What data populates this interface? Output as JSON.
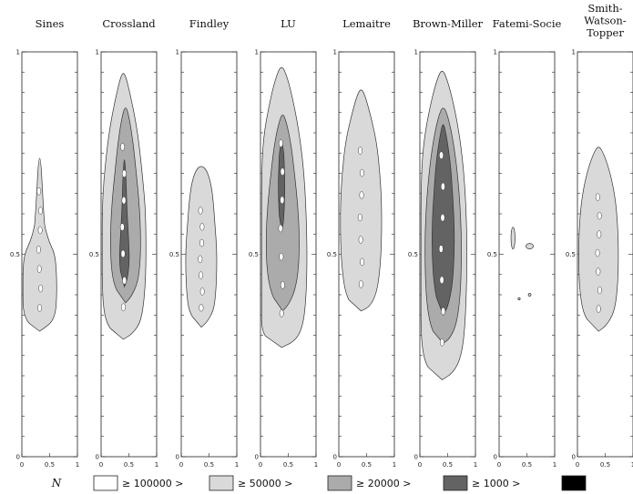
{
  "chart_data": {
    "type": "contour",
    "panels": [
      {
        "title": "Sines",
        "title_lines": [
          "Sines"
        ],
        "regions": [
          {
            "level": 1,
            "cx": 0.32,
            "halfwidths": [
              [
                0.03,
                0.15
              ],
              [
                0.05,
                0.22
              ],
              [
                0.09,
                0.28
              ],
              [
                0.14,
                0.3
              ],
              [
                0.22,
                0.31
              ],
              [
                0.32,
                0.3
              ],
              [
                0.4,
                0.27
              ],
              [
                0.46,
                0.17
              ],
              [
                0.52,
                0.11
              ],
              [
                0.56,
                0.08
              ]
            ],
            "yb": 0.31,
            "yt": 0.79
          }
        ]
      },
      {
        "title": "Crossland",
        "title_lines": [
          "Crossland"
        ],
        "regions": [
          {
            "level": 1,
            "cx": 0.4,
            "halfwidths": [
              [
                0.02,
                0.16
              ],
              [
                0.06,
                0.3
              ],
              [
                0.12,
                0.36
              ],
              [
                0.22,
                0.4
              ],
              [
                0.34,
                0.41
              ],
              [
                0.48,
                0.4
              ],
              [
                0.6,
                0.35
              ],
              [
                0.72,
                0.29
              ],
              [
                0.82,
                0.22
              ],
              [
                0.92,
                0.12
              ],
              [
                0.98,
                0.05
              ]
            ],
            "yb": 0.29,
            "yt": 0.95
          },
          {
            "level": 2,
            "cx": 0.44,
            "halfwidths": [
              [
                0.03,
                0.1
              ],
              [
                0.1,
                0.22
              ],
              [
                0.22,
                0.27
              ],
              [
                0.38,
                0.27
              ],
              [
                0.52,
                0.24
              ],
              [
                0.66,
                0.19
              ],
              [
                0.8,
                0.14
              ],
              [
                0.93,
                0.07
              ]
            ],
            "yb": 0.38,
            "yt": 0.87
          },
          {
            "level": 3,
            "cx": 0.42,
            "halfwidths": [
              [
                0.05,
                0.05
              ],
              [
                0.18,
                0.09
              ],
              [
                0.32,
                0.08
              ],
              [
                0.46,
                0.06
              ],
              [
                0.62,
                0.04
              ],
              [
                0.8,
                0.03
              ]
            ],
            "yb": 0.42,
            "yt": 0.75
          }
        ]
      },
      {
        "title": "Findley",
        "title_lines": [
          "Findley"
        ],
        "regions": [
          {
            "level": 1,
            "cx": 0.36,
            "halfwidths": [
              [
                0.03,
                0.1
              ],
              [
                0.1,
                0.22
              ],
              [
                0.2,
                0.26
              ],
              [
                0.34,
                0.28
              ],
              [
                0.48,
                0.28
              ],
              [
                0.62,
                0.25
              ],
              [
                0.76,
                0.22
              ],
              [
                0.88,
                0.18
              ],
              [
                0.97,
                0.1
              ]
            ],
            "yb": 0.32,
            "yt": 0.72
          }
        ]
      },
      {
        "title": "LU",
        "title_lines": [
          "LU"
        ],
        "regions": [
          {
            "level": 1,
            "cx": 0.38,
            "halfwidths": [
              [
                0.02,
                0.22
              ],
              [
                0.06,
                0.36
              ],
              [
                0.14,
                0.43
              ],
              [
                0.28,
                0.46
              ],
              [
                0.44,
                0.45
              ],
              [
                0.6,
                0.41
              ],
              [
                0.74,
                0.33
              ],
              [
                0.86,
                0.22
              ],
              [
                0.95,
                0.11
              ]
            ],
            "yb": 0.27,
            "yt": 0.97
          },
          {
            "level": 2,
            "cx": 0.4,
            "halfwidths": [
              [
                0.03,
                0.1
              ],
              [
                0.1,
                0.22
              ],
              [
                0.22,
                0.29
              ],
              [
                0.38,
                0.3
              ],
              [
                0.54,
                0.27
              ],
              [
                0.7,
                0.21
              ],
              [
                0.84,
                0.15
              ],
              [
                0.95,
                0.07
              ]
            ],
            "yb": 0.36,
            "yt": 0.85
          },
          {
            "level": 3,
            "cx": 0.38,
            "halfwidths": [
              [
                0.06,
                0.03
              ],
              [
                0.25,
                0.05
              ],
              [
                0.5,
                0.06
              ],
              [
                0.7,
                0.05
              ],
              [
                0.88,
                0.04
              ]
            ],
            "yb": 0.56,
            "yt": 0.78
          }
        ]
      },
      {
        "title": "Lemaitre",
        "title_lines": [
          "Lemaitre"
        ],
        "regions": [
          {
            "level": 1,
            "cx": 0.4,
            "halfwidths": [
              [
                0.02,
                0.16
              ],
              [
                0.08,
                0.28
              ],
              [
                0.18,
                0.34
              ],
              [
                0.32,
                0.37
              ],
              [
                0.48,
                0.37
              ],
              [
                0.62,
                0.34
              ],
              [
                0.76,
                0.28
              ],
              [
                0.88,
                0.17
              ],
              [
                0.97,
                0.07
              ]
            ],
            "yb": 0.36,
            "yt": 0.91
          }
        ]
      },
      {
        "title": "Brown-Miller",
        "title_lines": [
          "Brown-Miller"
        ],
        "regions": [
          {
            "level": 1,
            "cx": 0.4,
            "halfwidths": [
              [
                0.02,
                0.18
              ],
              [
                0.06,
                0.32
              ],
              [
                0.14,
                0.4
              ],
              [
                0.28,
                0.44
              ],
              [
                0.44,
                0.45
              ],
              [
                0.6,
                0.42
              ],
              [
                0.74,
                0.35
              ],
              [
                0.86,
                0.24
              ],
              [
                0.96,
                0.1
              ]
            ],
            "yb": 0.19,
            "yt": 0.96
          },
          {
            "level": 2,
            "cx": 0.42,
            "halfwidths": [
              [
                0.02,
                0.12
              ],
              [
                0.08,
                0.24
              ],
              [
                0.2,
                0.31
              ],
              [
                0.36,
                0.33
              ],
              [
                0.52,
                0.32
              ],
              [
                0.68,
                0.27
              ],
              [
                0.82,
                0.2
              ],
              [
                0.94,
                0.1
              ]
            ],
            "yb": 0.28,
            "yt": 0.87
          },
          {
            "level": 3,
            "cx": 0.42,
            "halfwidths": [
              [
                0.04,
                0.08
              ],
              [
                0.14,
                0.16
              ],
              [
                0.3,
                0.2
              ],
              [
                0.46,
                0.2
              ],
              [
                0.62,
                0.17
              ],
              [
                0.78,
                0.13
              ],
              [
                0.92,
                0.06
              ]
            ],
            "yb": 0.35,
            "yt": 0.83
          }
        ]
      },
      {
        "title": "Fatemi-Socie",
        "title_lines": [
          "Fatemi-Socie"
        ],
        "regions": []
      },
      {
        "title": "Smith-Watson-Topper",
        "title_lines": [
          "Smith-",
          "Watson-",
          "Topper"
        ],
        "regions": [
          {
            "level": 1,
            "cx": 0.38,
            "halfwidths": [
              [
                0.03,
                0.14
              ],
              [
                0.1,
                0.28
              ],
              [
                0.22,
                0.34
              ],
              [
                0.38,
                0.36
              ],
              [
                0.54,
                0.35
              ],
              [
                0.7,
                0.31
              ],
              [
                0.84,
                0.22
              ],
              [
                0.95,
                0.1
              ]
            ],
            "yb": 0.31,
            "yt": 0.77
          }
        ]
      }
    ],
    "x_ticks": [
      "0",
      "0.5",
      "1"
    ],
    "y_ticks": [
      "0",
      "0.5",
      "1"
    ],
    "xlim": [
      0,
      1
    ],
    "ylim": [
      0,
      1
    ],
    "legend": {
      "symbol": "N",
      "labels": [
        "≥ 100000 >",
        "≥ 50000 >",
        "≥ 20000 >",
        "≥ 1000 >"
      ],
      "placement": "bottom"
    },
    "level_colors": [
      "#ffffff",
      "#d9d9d9",
      "#ababab",
      "#636363",
      "#000000"
    ]
  }
}
